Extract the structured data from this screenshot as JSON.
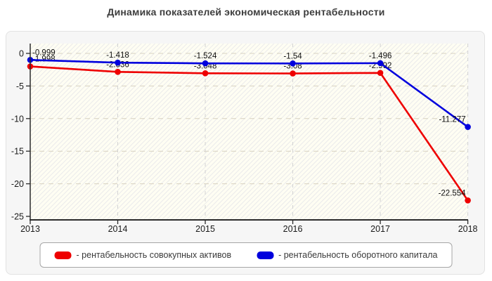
{
  "chart_data": {
    "type": "line",
    "title": "Динамика показателей экономическая рентабельности",
    "x": [
      2013,
      2014,
      2015,
      2016,
      2017,
      2018
    ],
    "series": [
      {
        "name": "рентабельность совокупных активов",
        "color": "#ee0000",
        "values": [
          -1.998,
          -2.836,
          -3.048,
          -3.08,
          -2.992,
          -22.554
        ],
        "point_labels": [
          "-1.998",
          "-2.836",
          "-3.048",
          "-3.08",
          "-2.992",
          "-22.554"
        ]
      },
      {
        "name": "рентабельность оборотного капитала",
        "color": "#0000dd",
        "values": [
          -0.999,
          -1.418,
          -1.524,
          -1.54,
          -1.496,
          -11.277
        ],
        "point_labels": [
          "-0.999",
          "-1.418",
          "-1.524",
          "-1.54",
          "-1.496",
          "-11.277"
        ]
      }
    ],
    "ylim": [
      -25,
      0
    ],
    "yticks": [
      0,
      -5,
      -10,
      -15,
      -20,
      -25
    ],
    "xticks": [
      "2013",
      "2014",
      "2015",
      "2016",
      "2017",
      "2018"
    ],
    "xlabel": "",
    "ylabel": "",
    "grid": "dashed",
    "plot_hatch": true,
    "legend_position": "bottom"
  },
  "legend": {
    "items": [
      {
        "label": "- рентабельность совокупных активов",
        "color": "#ee0000"
      },
      {
        "label": "- рентабельность оборотного капитала",
        "color": "#0000dd"
      }
    ]
  },
  "colors": {
    "axis": "#2b2b2b",
    "tick_label": "#1a1a1a",
    "grid_h": "#d7d1c0",
    "grid_v": "#d2d2d2",
    "plot_bg": "#fffef3",
    "plot_stripe": "#ebebeb",
    "panel_bg": "#f6f6f6",
    "title_text": "#3d3d3d"
  }
}
